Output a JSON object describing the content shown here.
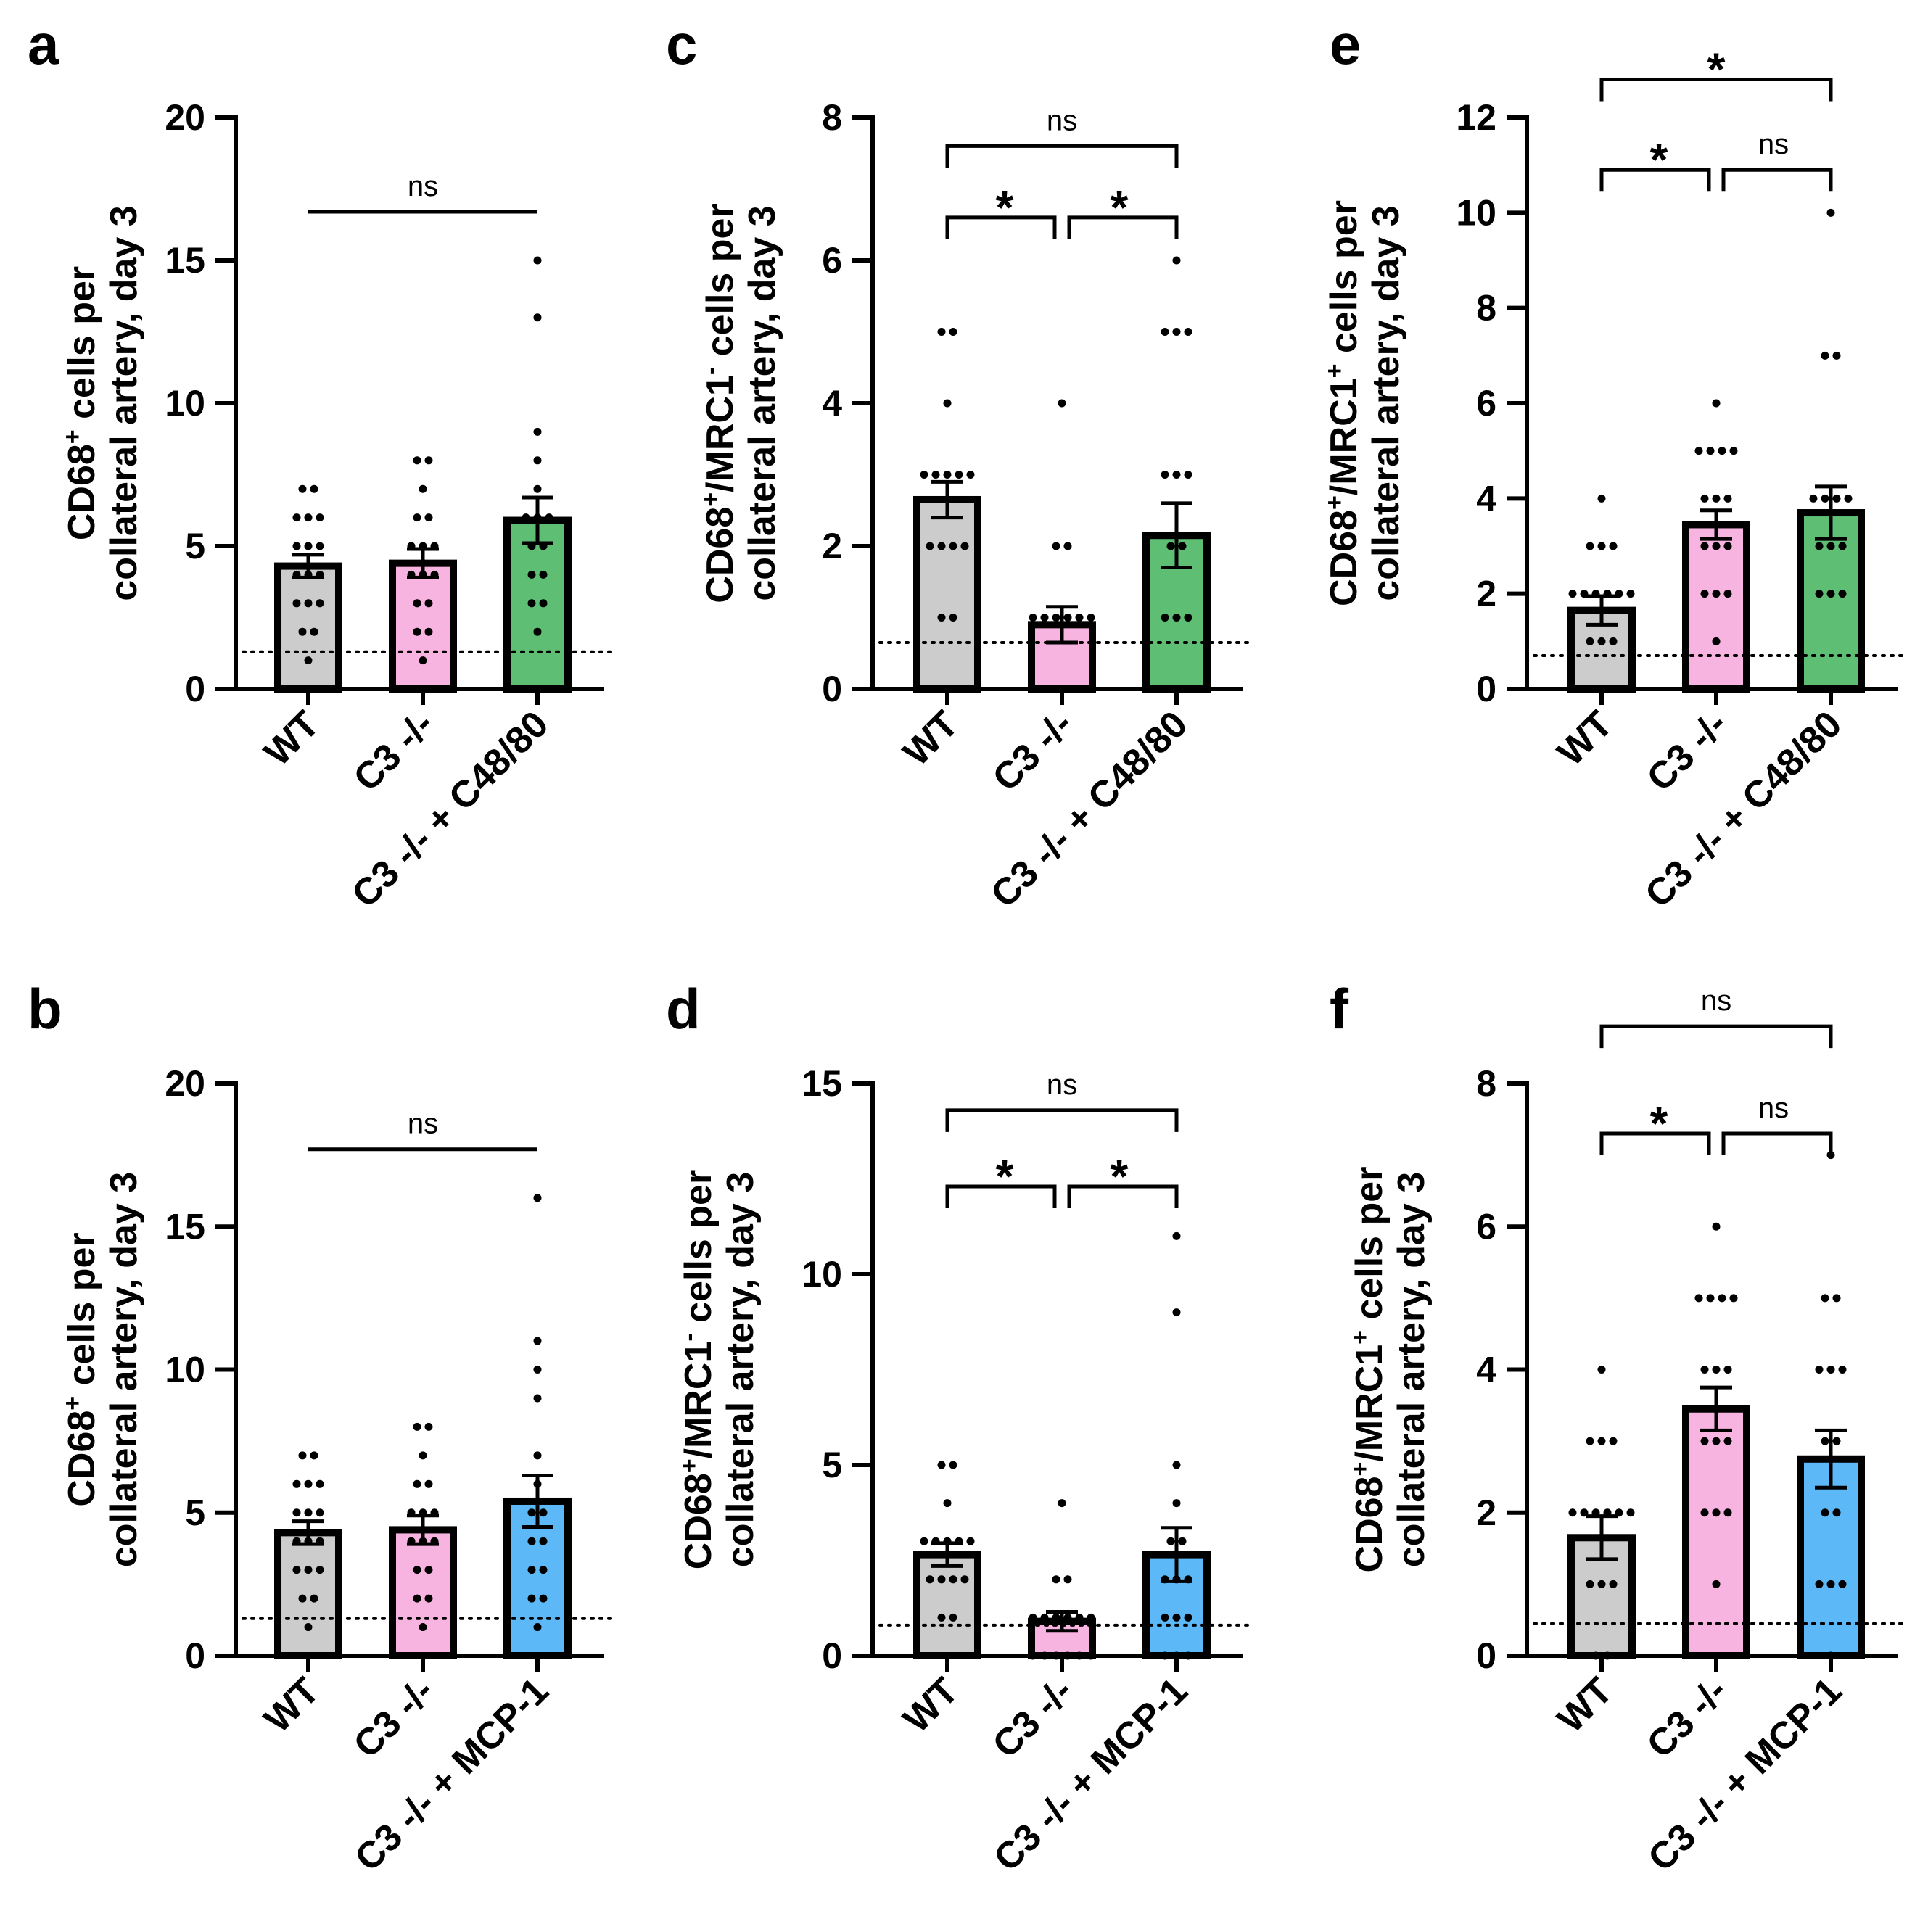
{
  "colors": {
    "WT": "#cccccc",
    "C3": "#f8b4e0",
    "C48": "#5ebe73",
    "MCP": "#5cb8f6"
  },
  "chart_data": [
    {
      "type": "bar",
      "panel": "a",
      "ylabel_lines": [
        "CD68",
        "+",
        " cells per",
        "collateral artery, day 3"
      ],
      "categories": [
        "WT",
        "C3 -/-",
        "C3 -/- + C48/80"
      ],
      "color_keys": [
        "WT",
        "C3",
        "C48"
      ],
      "means": [
        4.3,
        4.4,
        5.9
      ],
      "sem": [
        0.4,
        0.5,
        0.8
      ],
      "ylim": [
        0,
        20
      ],
      "yticks": [
        0,
        5,
        10,
        15,
        20
      ],
      "detection_limit": 1.3,
      "points": [
        [
          7,
          7,
          6,
          6,
          6,
          5,
          5,
          5,
          4,
          4,
          4,
          3,
          3,
          3,
          2,
          2,
          1
        ],
        [
          8,
          8,
          7,
          6,
          6,
          5,
          5,
          5,
          4,
          4,
          4,
          3,
          3,
          2,
          2,
          1
        ],
        [
          15,
          13,
          9,
          8,
          7,
          6,
          6,
          6,
          5,
          5,
          4,
          4,
          3,
          3,
          2
        ]
      ],
      "significance": [
        {
          "from": 0,
          "to": 2,
          "label": "ns",
          "style": "line",
          "value": 16.7
        }
      ]
    },
    {
      "type": "bar",
      "panel": "b",
      "ylabel_lines": [
        "CD68",
        "+",
        " cells per",
        "collateral artery, day 3"
      ],
      "categories": [
        "WT",
        "C3 -/-",
        "C3 -/- + MCP-1"
      ],
      "color_keys": [
        "WT",
        "C3",
        "MCP"
      ],
      "means": [
        4.3,
        4.4,
        5.4
      ],
      "sem": [
        0.4,
        0.5,
        0.9
      ],
      "ylim": [
        0,
        20
      ],
      "yticks": [
        0,
        5,
        10,
        15,
        20
      ],
      "detection_limit": 1.3,
      "points": [
        [
          7,
          7,
          6,
          6,
          6,
          5,
          5,
          5,
          4,
          4,
          4,
          3,
          3,
          3,
          2,
          2,
          1
        ],
        [
          8,
          8,
          7,
          6,
          6,
          5,
          5,
          5,
          4,
          4,
          4,
          3,
          3,
          2,
          2,
          1
        ],
        [
          16,
          11,
          10,
          9,
          7,
          6,
          5,
          5,
          4,
          4,
          3,
          3,
          2,
          2,
          1
        ]
      ],
      "significance": [
        {
          "from": 0,
          "to": 2,
          "label": "ns",
          "style": "line",
          "value": 17.7
        }
      ]
    },
    {
      "type": "bar",
      "panel": "c",
      "ylabel_lines": [
        "CD68",
        "+",
        "/MRC1",
        "-",
        " cells per",
        "collateral artery, day 3"
      ],
      "categories": [
        "WT",
        "C3 -/-",
        "C3 -/- + C48/80"
      ],
      "color_keys": [
        "WT",
        "C3",
        "C48"
      ],
      "means": [
        2.65,
        0.9,
        2.15
      ],
      "sem": [
        0.25,
        0.25,
        0.45
      ],
      "ylim": [
        0,
        8
      ],
      "yticks": [
        0,
        2,
        4,
        6,
        8
      ],
      "detection_limit": 0.65,
      "points": [
        [
          5,
          5,
          4,
          3,
          3,
          3,
          3,
          3,
          2,
          2,
          2,
          2,
          1,
          1
        ],
        [
          4,
          2,
          2,
          1,
          1,
          1,
          1,
          1,
          1,
          0,
          0,
          0,
          0,
          0,
          0
        ],
        [
          6,
          5,
          5,
          5,
          3,
          3,
          3,
          2,
          2,
          1,
          1,
          1,
          0,
          0,
          0,
          0
        ]
      ],
      "significance": [
        {
          "from": 0,
          "to": 1,
          "label": "*",
          "style": "bracket",
          "value": 6.6
        },
        {
          "from": 1,
          "to": 2,
          "label": "*",
          "style": "bracket",
          "value": 6.6
        },
        {
          "from": 0,
          "to": 2,
          "label": "ns",
          "style": "bracket",
          "value": 7.6
        }
      ]
    },
    {
      "type": "bar",
      "panel": "d",
      "ylabel_lines": [
        "CD68",
        "+",
        "/MRC1",
        "-",
        " cells per",
        "collateral artery, day 3"
      ],
      "categories": [
        "WT",
        "C3 -/-",
        "C3 -/- + MCP-1"
      ],
      "color_keys": [
        "WT",
        "C3",
        "MCP"
      ],
      "means": [
        2.65,
        0.9,
        2.65
      ],
      "sem": [
        0.3,
        0.25,
        0.7
      ],
      "ylim": [
        0,
        15
      ],
      "yticks": [
        0,
        5,
        10,
        15
      ],
      "detection_limit": 0.8,
      "points": [
        [
          5,
          5,
          4,
          3,
          3,
          3,
          3,
          3,
          2,
          2,
          2,
          2,
          1,
          1
        ],
        [
          4,
          2,
          2,
          1,
          1,
          1,
          1,
          1,
          1,
          0,
          0,
          0,
          0,
          0,
          0
        ],
        [
          11,
          9,
          5,
          4,
          3,
          3,
          2,
          2,
          2,
          1,
          1,
          1,
          0,
          0,
          0
        ]
      ],
      "significance": [
        {
          "from": 0,
          "to": 1,
          "label": "*",
          "style": "bracket",
          "value": 12.3
        },
        {
          "from": 1,
          "to": 2,
          "label": "*",
          "style": "bracket",
          "value": 12.3
        },
        {
          "from": 0,
          "to": 2,
          "label": "ns",
          "style": "bracket",
          "value": 14.3
        }
      ]
    },
    {
      "type": "bar",
      "panel": "e",
      "ylabel_lines": [
        "CD68",
        "+",
        "/MRC1",
        "+",
        " cells per",
        "collateral artery, day 3"
      ],
      "categories": [
        "WT",
        "C3 -/-",
        "C3 -/- + C48/80"
      ],
      "color_keys": [
        "WT",
        "C3",
        "C48"
      ],
      "means": [
        1.65,
        3.45,
        3.7
      ],
      "sem": [
        0.3,
        0.3,
        0.55
      ],
      "ylim": [
        0,
        12
      ],
      "yticks": [
        0,
        2,
        4,
        6,
        8,
        10,
        12
      ],
      "detection_limit": 0.7,
      "points": [
        [
          4,
          3,
          3,
          3,
          2,
          2,
          2,
          2,
          2,
          2,
          1,
          1,
          1,
          0,
          0
        ],
        [
          6,
          5,
          5,
          5,
          5,
          4,
          4,
          4,
          3,
          3,
          3,
          2,
          2,
          2,
          1
        ],
        [
          10,
          7,
          7,
          4,
          4,
          4,
          4,
          3,
          3,
          3,
          2,
          2,
          2,
          0
        ]
      ],
      "significance": [
        {
          "from": 0,
          "to": 1,
          "label": "*",
          "style": "bracket",
          "value": 10.9
        },
        {
          "from": 1,
          "to": 2,
          "label": "ns",
          "style": "bracket",
          "value": 10.9
        },
        {
          "from": 0,
          "to": 2,
          "label": "*",
          "style": "bracket",
          "value": 12.8
        }
      ]
    },
    {
      "type": "bar",
      "panel": "f",
      "ylabel_lines": [
        "CD68",
        "+",
        "/MRC1",
        "+",
        " cells per",
        "collateral artery, day 3"
      ],
      "categories": [
        "WT",
        "C3 -/-",
        "C3 -/- + MCP-1"
      ],
      "color_keys": [
        "WT",
        "C3",
        "MCP"
      ],
      "means": [
        1.65,
        3.45,
        2.75
      ],
      "sem": [
        0.3,
        0.3,
        0.4
      ],
      "ylim": [
        0,
        8
      ],
      "yticks": [
        0,
        2,
        4,
        6,
        8
      ],
      "detection_limit": 0.45,
      "points": [
        [
          4,
          3,
          3,
          3,
          2,
          2,
          2,
          2,
          2,
          2,
          1,
          1,
          1,
          0,
          0
        ],
        [
          6,
          5,
          5,
          5,
          5,
          4,
          4,
          4,
          3,
          3,
          3,
          2,
          2,
          2,
          1
        ],
        [
          7,
          5,
          5,
          4,
          4,
          4,
          3,
          3,
          2,
          2,
          1,
          1,
          1,
          0
        ]
      ],
      "significance": [
        {
          "from": 0,
          "to": 1,
          "label": "*",
          "style": "bracket",
          "value": 7.3
        },
        {
          "from": 1,
          "to": 2,
          "label": "ns",
          "style": "bracket",
          "value": 7.3
        },
        {
          "from": 0,
          "to": 2,
          "label": "ns",
          "style": "bracket",
          "value": 8.8
        }
      ]
    }
  ]
}
